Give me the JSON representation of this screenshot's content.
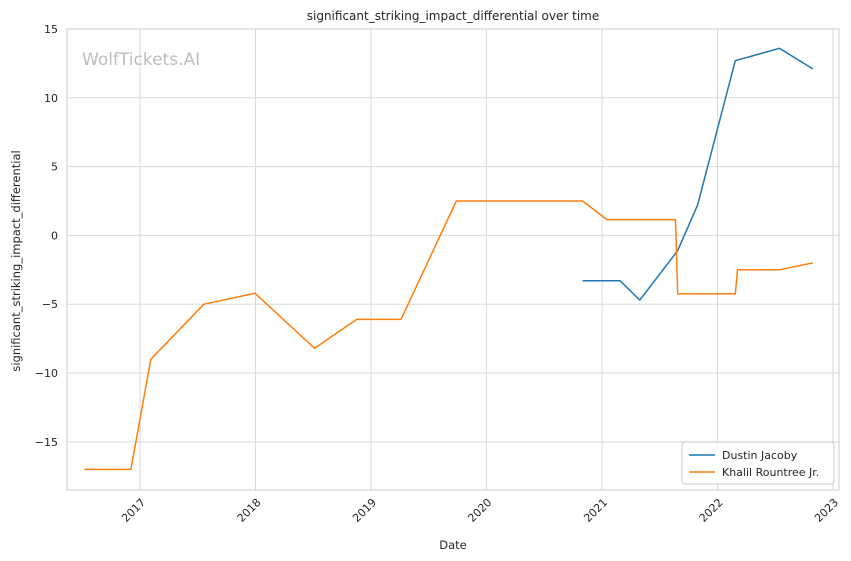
{
  "chart_data": {
    "type": "line",
    "title": "significant_striking_impact_differential over time",
    "xlabel": "Date",
    "ylabel": "significant_striking_impact_differential",
    "watermark": "WolfTickets.AI",
    "xlim": [
      "2016-05-15",
      "2023-01-20"
    ],
    "ylim": [
      -18.5,
      15
    ],
    "x_ticks": [
      "2017",
      "2018",
      "2019",
      "2020",
      "2021",
      "2022",
      "2023"
    ],
    "y_ticks": [
      "-15",
      "-10",
      "-5",
      "0",
      "5",
      "10",
      "15"
    ],
    "grid": true,
    "legend_position": "bottom-right",
    "colors": {
      "Dustin Jacoby": "#1f77b4",
      "Khalil Rountree Jr.": "#ff7f0e"
    },
    "series": [
      {
        "name": "Dustin Jacoby",
        "color": "#1f77b4",
        "points": [
          [
            "2020-10-31",
            -3.3
          ],
          [
            "2021-02-27",
            -3.3
          ],
          [
            "2021-04-30",
            -4.7
          ],
          [
            "2021-08-28",
            -1.1
          ],
          [
            "2021-10-30",
            2.2
          ],
          [
            "2022-02-26",
            12.7
          ],
          [
            "2022-07-16",
            13.6
          ],
          [
            "2022-10-29",
            12.1
          ]
        ]
      },
      {
        "name": "Khalil Rountree Jr.",
        "color": "#ff7f0e",
        "points": [
          [
            "2016-07-09",
            -17.0
          ],
          [
            "2016-12-03",
            -17.0
          ],
          [
            "2017-02-04",
            -9.0
          ],
          [
            "2017-07-22",
            -5.0
          ],
          [
            "2017-12-30",
            -4.2
          ],
          [
            "2018-07-07",
            -8.2
          ],
          [
            "2018-11-17",
            -6.1
          ],
          [
            "2019-04-06",
            -6.1
          ],
          [
            "2019-09-28",
            2.5
          ],
          [
            "2020-10-31",
            2.5
          ],
          [
            "2021-01-16",
            1.15
          ],
          [
            "2021-08-21",
            1.15
          ],
          [
            "2021-08-28",
            -4.25
          ],
          [
            "2022-02-26",
            -4.25
          ],
          [
            "2022-03-05",
            -2.5
          ],
          [
            "2022-07-16",
            -2.5
          ],
          [
            "2022-10-29",
            -2.0
          ]
        ]
      }
    ]
  }
}
